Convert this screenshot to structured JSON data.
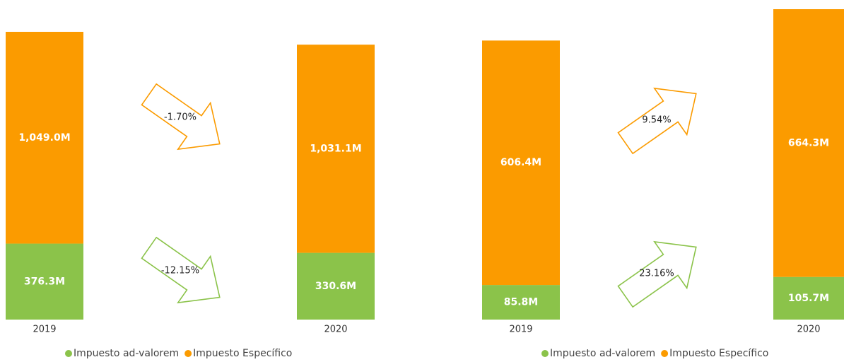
{
  "chart_data": [
    {
      "type": "bar",
      "stacked": true,
      "categories": [
        "2019",
        "2020"
      ],
      "series": [
        {
          "name": "Impuesto ad-valorem",
          "color": "#8bc34a",
          "values": [
            376.3,
            330.6
          ],
          "value_labels": [
            "376.3M",
            "330.6M"
          ],
          "change": "-12.15%"
        },
        {
          "name": "Impuesto Específico",
          "color": "#fb9b00",
          "values": [
            1049.0,
            1031.1
          ],
          "value_labels": [
            "1,049.0M",
            "1,031.1M"
          ],
          "change": "-1.70%"
        }
      ]
    },
    {
      "type": "bar",
      "stacked": true,
      "categories": [
        "2019",
        "2020"
      ],
      "series": [
        {
          "name": "Impuesto ad-valorem",
          "color": "#8bc34a",
          "values": [
            85.8,
            105.7
          ],
          "value_labels": [
            "85.8M",
            "105.7M"
          ],
          "change": "23.16%"
        },
        {
          "name": "Impuesto Específico",
          "color": "#fb9b00",
          "values": [
            606.4,
            664.3
          ],
          "value_labels": [
            "606.4M",
            "664.3M"
          ],
          "change": "9.54%"
        }
      ]
    }
  ]
}
